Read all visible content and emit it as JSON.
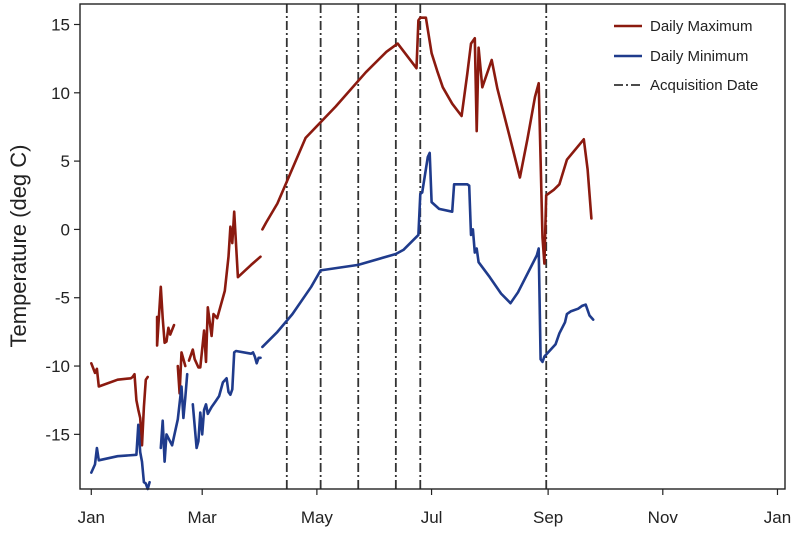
{
  "colors": {
    "daily_max": "#8b1a0f",
    "daily_min": "#1f3b8c",
    "acquisition": "#333333",
    "axis": "#222222"
  },
  "chart_data": {
    "type": "line",
    "title": "",
    "xlabel": "",
    "ylabel": "Temperature (deg C)",
    "x_unit": "day of year",
    "xlim": [
      -5,
      370
    ],
    "ylim": [
      -19,
      16.5
    ],
    "x_ticks": [
      {
        "value": 1,
        "label": "Jan"
      },
      {
        "value": 60,
        "label": "Mar"
      },
      {
        "value": 121,
        "label": "May"
      },
      {
        "value": 182,
        "label": "Jul"
      },
      {
        "value": 244,
        "label": "Sep"
      },
      {
        "value": 305,
        "label": "Nov"
      },
      {
        "value": 366,
        "label": "Jan"
      }
    ],
    "y_ticks": [
      {
        "value": 15,
        "label": "15"
      },
      {
        "value": 10,
        "label": "10"
      },
      {
        "value": 5,
        "label": "5"
      },
      {
        "value": 0,
        "label": "0"
      },
      {
        "value": -5,
        "label": "-5"
      },
      {
        "value": -10,
        "label": "-10"
      },
      {
        "value": -15,
        "label": "-15"
      }
    ],
    "legend": {
      "position": "top-right",
      "items": [
        {
          "label": "Daily Maximum",
          "style": "solid",
          "color_key": "daily_max"
        },
        {
          "label": "Daily Minimum",
          "style": "solid",
          "color_key": "daily_min"
        },
        {
          "label": "Acquisition Date",
          "style": "dashdot",
          "color_key": "acquisition"
        }
      ]
    },
    "acquisition_dates": [
      105,
      123,
      143,
      163,
      176,
      243
    ],
    "series": [
      {
        "name": "Daily Maximum",
        "color_key": "daily_max",
        "segments": [
          [
            [
              1,
              -9.8
            ],
            [
              3,
              -10.5
            ],
            [
              4,
              -10.2
            ],
            [
              5,
              -11.5
            ],
            [
              15,
              -11.0
            ],
            [
              22,
              -10.9
            ],
            [
              23,
              -10.8
            ],
            [
              24,
              -10.6
            ],
            [
              25,
              -12.5
            ],
            [
              26,
              -13.2
            ],
            [
              27,
              -13.8
            ],
            [
              28,
              -15.8
            ],
            [
              29,
              -13.0
            ],
            [
              30,
              -11.0
            ],
            [
              31,
              -10.8
            ]
          ],
          [
            [
              36,
              -6.4
            ],
            [
              36,
              -8.5
            ],
            [
              37,
              -6.3
            ],
            [
              38,
              -4.2
            ],
            [
              39,
              -6.5
            ],
            [
              40,
              -8.3
            ],
            [
              41,
              -8.2
            ],
            [
              42,
              -7.2
            ],
            [
              43,
              -7.7
            ],
            [
              45,
              -7.0
            ]
          ],
          [
            [
              47,
              -10.0
            ],
            [
              48,
              -12.0
            ],
            [
              49,
              -9.0
            ],
            [
              51,
              -10.0
            ]
          ],
          [
            [
              53,
              -9.6
            ],
            [
              55,
              -8.8
            ],
            [
              56,
              -9.5
            ],
            [
              58,
              -10.1
            ],
            [
              59,
              -10.1
            ],
            [
              61,
              -7.4
            ],
            [
              62,
              -9.7
            ],
            [
              63,
              -5.7
            ],
            [
              65,
              -7.8
            ],
            [
              66,
              -6.2
            ],
            [
              68,
              -6.5
            ],
            [
              72,
              -4.5
            ],
            [
              74,
              -2.0
            ],
            [
              75,
              0.2
            ],
            [
              76,
              -1.0
            ],
            [
              77,
              1.3
            ],
            [
              79,
              -3.5
            ],
            [
              86,
              -2.6
            ],
            [
              91,
              -2.0
            ]
          ],
          [
            [
              92,
              0.0
            ],
            [
              94,
              0.5
            ],
            [
              100,
              1.9
            ],
            [
              115,
              6.7
            ],
            [
              131,
              9.0
            ],
            [
              147,
              11.5
            ],
            [
              158,
              13.0
            ],
            [
              164,
              13.6
            ],
            [
              174,
              11.8
            ],
            [
              175,
              15.3
            ],
            [
              176,
              15.5
            ],
            [
              179,
              15.5
            ],
            [
              182,
              12.9
            ],
            [
              185,
              11.6
            ],
            [
              188,
              10.4
            ],
            [
              193,
              9.2
            ],
            [
              198,
              8.3
            ],
            [
              201,
              11.4
            ],
            [
              203,
              13.6
            ],
            [
              205,
              14.0
            ],
            [
              206,
              7.2
            ],
            [
              207,
              13.3
            ],
            [
              209,
              10.4
            ],
            [
              214,
              12.4
            ],
            [
              217,
              10.3
            ],
            [
              225,
              6.0
            ],
            [
              229,
              3.8
            ],
            [
              233,
              6.6
            ],
            [
              237,
              9.7
            ],
            [
              239,
              10.7
            ],
            [
              241,
              -0.6
            ],
            [
              242,
              -2.5
            ],
            [
              243,
              2.5
            ],
            [
              247,
              2.9
            ],
            [
              250,
              3.3
            ],
            [
              254,
              5.1
            ],
            [
              263,
              6.6
            ],
            [
              265,
              4.4
            ],
            [
              267,
              0.8
            ]
          ]
        ]
      },
      {
        "name": "Daily Minimum",
        "color_key": "daily_min",
        "segments": [
          [
            [
              1,
              -17.8
            ],
            [
              3,
              -17.2
            ],
            [
              4,
              -16.0
            ],
            [
              5,
              -16.9
            ],
            [
              15,
              -16.6
            ],
            [
              25,
              -16.5
            ],
            [
              26,
              -14.3
            ],
            [
              27,
              -16.3
            ],
            [
              28,
              -17.0
            ],
            [
              29,
              -18.5
            ],
            [
              30,
              -18.6
            ],
            [
              31,
              -19.0
            ],
            [
              32,
              -18.5
            ]
          ],
          [
            [
              38,
              -16.0
            ],
            [
              39,
              -14.0
            ],
            [
              40,
              -17.0
            ],
            [
              41,
              -15.0
            ],
            [
              44,
              -15.8
            ],
            [
              47,
              -13.9
            ],
            [
              49,
              -11.5
            ],
            [
              50,
              -13.8
            ],
            [
              51,
              -12.3
            ],
            [
              52,
              -10.6
            ]
          ],
          [
            [
              55,
              -12.8
            ],
            [
              57,
              -16.0
            ],
            [
              58,
              -15.5
            ],
            [
              59,
              -13.4
            ],
            [
              60,
              -15.0
            ],
            [
              61,
              -13.2
            ],
            [
              62,
              -12.8
            ],
            [
              63,
              -13.5
            ],
            [
              65,
              -13.0
            ],
            [
              67,
              -12.6
            ],
            [
              69,
              -12.2
            ],
            [
              71,
              -11.2
            ],
            [
              73,
              -10.9
            ],
            [
              74,
              -11.9
            ],
            [
              75,
              -12.1
            ],
            [
              76,
              -11.7
            ],
            [
              77,
              -9.0
            ],
            [
              78,
              -8.9
            ],
            [
              86,
              -9.1
            ],
            [
              87,
              -9.0
            ],
            [
              88,
              -9.3
            ],
            [
              89,
              -9.8
            ],
            [
              90,
              -9.4
            ],
            [
              91,
              -9.4
            ]
          ],
          [
            [
              92,
              -8.6
            ],
            [
              100,
              -7.5
            ],
            [
              108,
              -6.2
            ],
            [
              118,
              -4.2
            ],
            [
              123,
              -3.0
            ],
            [
              143,
              -2.6
            ],
            [
              163,
              -1.8
            ],
            [
              167,
              -1.5
            ],
            [
              175,
              -0.4
            ],
            [
              176,
              2.6
            ],
            [
              177,
              2.7
            ],
            [
              180,
              5.3
            ],
            [
              181,
              5.6
            ],
            [
              182,
              2.0
            ],
            [
              186,
              1.5
            ],
            [
              193,
              1.3
            ],
            [
              194,
              3.3
            ],
            [
              201,
              3.3
            ],
            [
              202,
              3.2
            ],
            [
              203,
              -0.4
            ],
            [
              204,
              0.0
            ],
            [
              205,
              -1.7
            ],
            [
              206,
              -1.4
            ],
            [
              207,
              -2.4
            ],
            [
              213,
              -3.5
            ],
            [
              219,
              -4.7
            ],
            [
              224,
              -5.4
            ],
            [
              228,
              -4.6
            ],
            [
              238,
              -1.9
            ],
            [
              239,
              -1.4
            ],
            [
              240,
              -9.5
            ],
            [
              241,
              -9.7
            ],
            [
              242,
              -9.3
            ],
            [
              248,
              -8.4
            ],
            [
              250,
              -7.6
            ],
            [
              253,
              -6.8
            ],
            [
              254,
              -6.2
            ],
            [
              256,
              -6.0
            ],
            [
              260,
              -5.8
            ],
            [
              262,
              -5.6
            ],
            [
              264,
              -5.5
            ],
            [
              266,
              -6.3
            ],
            [
              268,
              -6.6
            ]
          ]
        ]
      }
    ]
  }
}
